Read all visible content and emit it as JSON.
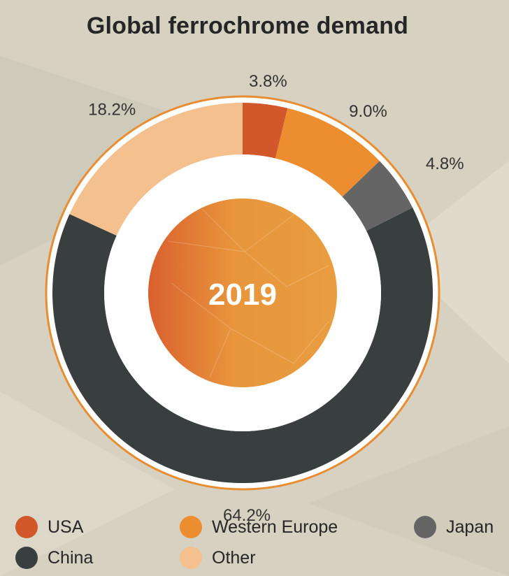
{
  "title": "Global ferrochrome demand",
  "center_label": "2019",
  "chart_data": {
    "type": "pie",
    "title": "Global ferrochrome demand",
    "categories": [
      "USA",
      "Western Europe",
      "Japan",
      "China",
      "Other"
    ],
    "values": [
      3.8,
      9.0,
      4.8,
      64.2,
      18.2
    ],
    "value_labels": [
      "3.8%",
      "9.0%",
      "4.8%",
      "64.2%",
      "18.2%"
    ],
    "colors": [
      "#d2572a",
      "#ec8d2f",
      "#656565",
      "#383f3e",
      "#f4c08d"
    ],
    "legend_placement": "bottom"
  },
  "legend": [
    {
      "label": "USA",
      "color": "#d2572a"
    },
    {
      "label": "Western Europe",
      "color": "#ec8d2f"
    },
    {
      "label": "Japan",
      "color": "#656565"
    },
    {
      "label": "China",
      "color": "#383f3e"
    },
    {
      "label": "Other",
      "color": "#f4c08d"
    }
  ]
}
